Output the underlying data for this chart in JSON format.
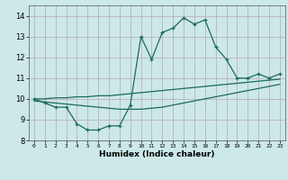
{
  "xlabel": "Humidex (Indice chaleur)",
  "x_values": [
    0,
    1,
    2,
    3,
    4,
    5,
    6,
    7,
    8,
    9,
    10,
    11,
    12,
    13,
    14,
    15,
    16,
    17,
    18,
    19,
    20,
    21,
    22,
    23
  ],
  "line1_y": [
    10.0,
    9.8,
    9.6,
    9.6,
    8.8,
    8.5,
    8.5,
    8.7,
    8.7,
    9.7,
    13.0,
    11.9,
    13.2,
    13.4,
    13.9,
    13.6,
    13.8,
    12.5,
    11.9,
    11.0,
    11.0,
    11.2,
    11.0,
    11.2
  ],
  "line2_y": [
    10.0,
    10.0,
    10.05,
    10.05,
    10.1,
    10.1,
    10.15,
    10.15,
    10.2,
    10.25,
    10.3,
    10.35,
    10.4,
    10.45,
    10.5,
    10.55,
    10.6,
    10.65,
    10.7,
    10.75,
    10.8,
    10.85,
    10.9,
    10.95
  ],
  "line3_y": [
    9.9,
    9.85,
    9.8,
    9.75,
    9.7,
    9.65,
    9.6,
    9.55,
    9.5,
    9.5,
    9.5,
    9.55,
    9.6,
    9.7,
    9.8,
    9.9,
    10.0,
    10.1,
    10.2,
    10.3,
    10.4,
    10.5,
    10.6,
    10.7
  ],
  "line_color": "#1a6b5a",
  "bg_color": "#cce8e8",
  "grid_major_color": "#b8a8a8",
  "grid_minor_color": "#d4c0c0",
  "ylim": [
    8,
    14.5
  ],
  "yticks": [
    8,
    9,
    10,
    11,
    12,
    13,
    14
  ],
  "xlim": [
    -0.5,
    23.5
  ],
  "xticks": [
    0,
    1,
    2,
    3,
    4,
    5,
    6,
    7,
    8,
    9,
    10,
    11,
    12,
    13,
    14,
    15,
    16,
    17,
    18,
    19,
    20,
    21,
    22,
    23
  ]
}
